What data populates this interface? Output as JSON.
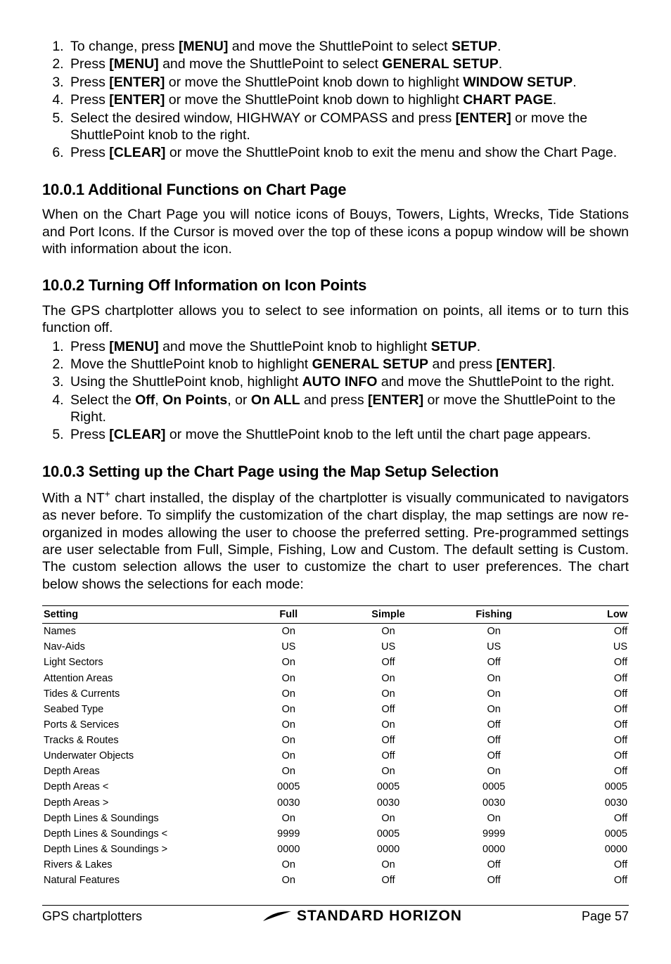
{
  "intro_steps": [
    {
      "pre": "To change, press ",
      "b1": "[MENU]",
      "mid": " and move the ShuttlePoint to select ",
      "b2": "SETUP",
      "post": "."
    },
    {
      "pre": "Press ",
      "b1": "[MENU]",
      "mid": " and move the ShuttlePoint to select ",
      "b2": "GENERAL SETUP",
      "post": "."
    },
    {
      "pre": "Press ",
      "b1": "[ENTER]",
      "mid": " or move the ShuttlePoint knob down to highlight ",
      "b2": "WINDOW SETUP",
      "post": "."
    },
    {
      "pre": "Press ",
      "b1": "[ENTER]",
      "mid": " or move the ShuttlePoint knob down to highlight ",
      "b2": "CHART PAGE",
      "post": "."
    },
    {
      "pre": "Select the desired window, HIGHWAY or COMPASS and press ",
      "b1": "[ENTER]",
      "mid": " or move the ShuttlePoint knob to the right.",
      "b2": "",
      "post": ""
    },
    {
      "pre": "Press ",
      "b1": "[CLEAR]",
      "mid": " or move the ShuttlePoint knob to exit the menu and show the Chart Page.",
      "b2": "",
      "post": ""
    }
  ],
  "s1": {
    "title": "10.0.1  Additional Functions on Chart Page",
    "body": "When on the Chart Page you will notice icons of Bouys, Towers, Lights, Wrecks, Tide Stations and Port Icons. If the Cursor is moved over the top of these icons a popup window will be shown with information about the icon."
  },
  "s2": {
    "title": "10.0.2  Turning Off Information on Icon Points",
    "intro": "The GPS chartplotter allows you to select to see information on points, all items or to turn this function off."
  },
  "s2_steps": {
    "1": {
      "pre": "Press ",
      "b1": "[MENU]",
      "mid": " and move the ShuttlePoint knob to highlight ",
      "b2": "SETUP",
      "post": "."
    },
    "2": {
      "pre": "Move the ShuttlePoint knob to highlight ",
      "b1": "GENERAL SETUP",
      "mid": " and press ",
      "b2": "[ENTER]",
      "post": "."
    },
    "3": {
      "pre": "Using the ShuttlePoint knob, highlight ",
      "b1": "AUTO INFO",
      "mid": " and move the ShuttlePoint to the right.",
      "b2": "",
      "post": ""
    },
    "4": {
      "pre": "Select the ",
      "b1": "Off",
      "mid": ", ",
      "b2": "On Points",
      "post_mid": ", or ",
      "b3": "On ALL",
      "mid2": " and press ",
      "b4": "[ENTER]",
      "post": " or move the ShuttlePoint to the Right."
    },
    "5": {
      "pre": "Press ",
      "b1": "[CLEAR]",
      "mid": " or move the ShuttlePoint knob to the left until the chart page appears.",
      "b2": "",
      "post": ""
    }
  },
  "s3": {
    "title": "10.0.3  Setting up the Chart Page using the Map Setup Selection",
    "body_pre": "With a NT",
    "sup": "+",
    "body_post": " chart installed, the display of the chartplotter is visually communicated to navigators as never before. To simplify the customization of the chart display, the map settings are now re-organized in modes allowing the user to choose the preferred setting. Pre-programmed settings are user selectable from Full, Simple, Fishing, Low and Custom. The default setting is Custom. The custom selection allows the user to customize the chart to user preferences. The chart below shows the selections for each mode:"
  },
  "table": {
    "headers": {
      "c0": "Setting",
      "c1": "Full",
      "c2": "Simple",
      "c3": "Fishing",
      "c4": "Low"
    },
    "rows": [
      {
        "c0": "Names",
        "c1": "On",
        "c2": "On",
        "c3": "On",
        "c4": "Off"
      },
      {
        "c0": "Nav-Aids",
        "c1": "US",
        "c2": "US",
        "c3": "US",
        "c4": "US"
      },
      {
        "c0": "Light Sectors",
        "c1": "On",
        "c2": "Off",
        "c3": "Off",
        "c4": "Off"
      },
      {
        "c0": "Attention Areas",
        "c1": "On",
        "c2": "On",
        "c3": "On",
        "c4": "Off"
      },
      {
        "c0": "Tides & Currents",
        "c1": "On",
        "c2": "On",
        "c3": "On",
        "c4": "Off"
      },
      {
        "c0": "Seabed Type",
        "c1": "On",
        "c2": "Off",
        "c3": "On",
        "c4": "Off"
      },
      {
        "c0": "Ports & Services",
        "c1": "On",
        "c2": "On",
        "c3": "Off",
        "c4": "Off"
      },
      {
        "c0": "Tracks & Routes",
        "c1": "On",
        "c2": "Off",
        "c3": "Off",
        "c4": "Off"
      },
      {
        "c0": "Underwater Objects",
        "c1": "On",
        "c2": "Off",
        "c3": "Off",
        "c4": "Off"
      },
      {
        "c0": "Depth Areas",
        "c1": "On",
        "c2": "On",
        "c3": "On",
        "c4": "Off"
      },
      {
        "c0": "Depth Areas <",
        "c1": "0005",
        "c2": "0005",
        "c3": "0005",
        "c4": "0005"
      },
      {
        "c0": "Depth Areas >",
        "c1": "0030",
        "c2": "0030",
        "c3": "0030",
        "c4": "0030"
      },
      {
        "c0": "Depth Lines & Soundings",
        "c1": "On",
        "c2": "On",
        "c3": "On",
        "c4": "Off"
      },
      {
        "c0": "Depth Lines & Soundings <",
        "c1": "9999",
        "c2": "0005",
        "c3": "9999",
        "c4": "0005"
      },
      {
        "c0": "Depth Lines & Soundings >",
        "c1": "0000",
        "c2": "0000",
        "c3": "0000",
        "c4": "0000"
      },
      {
        "c0": "Rivers & Lakes",
        "c1": "On",
        "c2": "On",
        "c3": "Off",
        "c4": "Off"
      },
      {
        "c0": "Natural Features",
        "c1": "On",
        "c2": "Off",
        "c3": "Off",
        "c4": "Off"
      }
    ]
  },
  "footer": {
    "left": "GPS chartplotters",
    "brand": "STANDARD HORIZON",
    "right": "Page 57"
  },
  "colors": {
    "text": "#000000",
    "bg": "#ffffff",
    "rule": "#000000"
  }
}
